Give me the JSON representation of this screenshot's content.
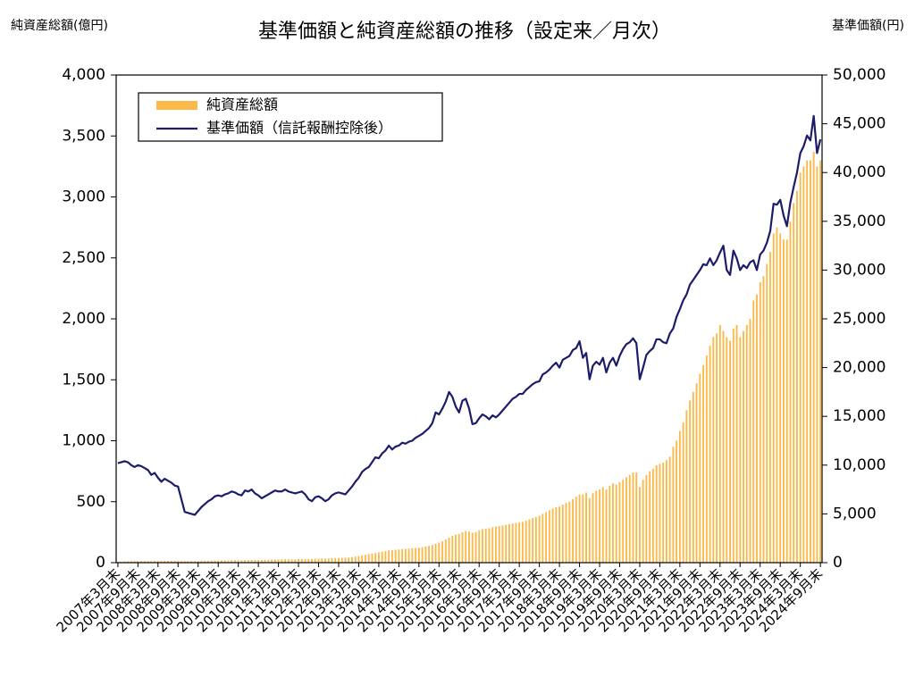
{
  "chart_data": {
    "type": "combo",
    "title": "基準価額と純資産総額の推移（設定来／月次）",
    "y_axis_label": "純資産総額(億円)",
    "y2_axis_label": "基準価額(円)",
    "categories": [
      "2007年3月末",
      null,
      null,
      null,
      null,
      null,
      "2007年9月末",
      null,
      null,
      null,
      null,
      null,
      "2008年3月末",
      null,
      null,
      null,
      null,
      null,
      "2008年9月末",
      null,
      null,
      null,
      null,
      null,
      "2009年3月末",
      null,
      null,
      null,
      null,
      null,
      "2009年9月末",
      null,
      null,
      null,
      null,
      null,
      "2010年3月末",
      null,
      null,
      null,
      null,
      null,
      "2010年9月末",
      null,
      null,
      null,
      null,
      null,
      "2011年3月末",
      null,
      null,
      null,
      null,
      null,
      "2011年9月末",
      null,
      null,
      null,
      null,
      null,
      "2012年3月末",
      null,
      null,
      null,
      null,
      null,
      "2012年9月末",
      null,
      null,
      null,
      null,
      null,
      "2013年3月末",
      null,
      null,
      null,
      null,
      null,
      "2013年9月末",
      null,
      null,
      null,
      null,
      null,
      "2014年3月末",
      null,
      null,
      null,
      null,
      null,
      "2014年9月末",
      null,
      null,
      null,
      null,
      null,
      "2015年3月末",
      null,
      null,
      null,
      null,
      null,
      "2015年9月末",
      null,
      null,
      null,
      null,
      null,
      "2016年3月末",
      null,
      null,
      null,
      null,
      null,
      "2016年9月末",
      null,
      null,
      null,
      null,
      null,
      "2017年3月末",
      null,
      null,
      null,
      null,
      null,
      "2017年9月末",
      null,
      null,
      null,
      null,
      null,
      "2018年3月末",
      null,
      null,
      null,
      null,
      null,
      "2018年9月末",
      null,
      null,
      null,
      null,
      null,
      "2019年3月末",
      null,
      null,
      null,
      null,
      null,
      "2019年9月末",
      null,
      null,
      null,
      null,
      null,
      "2020年3月末",
      null,
      null,
      null,
      null,
      null,
      "2020年9月末",
      null,
      null,
      null,
      null,
      null,
      "2021年3月末",
      null,
      null,
      null,
      null,
      null,
      "2021年9月末",
      null,
      null,
      null,
      null,
      null,
      "2022年3月末",
      null,
      null,
      null,
      null,
      null,
      "2022年9月末",
      null,
      null,
      null,
      null,
      null,
      "2023年3月末",
      null,
      null,
      null,
      null,
      null,
      "2023年9月末",
      null,
      null,
      null,
      null,
      null,
      "2024年3月末",
      null,
      null,
      null,
      null,
      null,
      "2024年9月末"
    ],
    "series": [
      {
        "name": "純資産総額",
        "type": "bar",
        "color": "#fbb94a",
        "values": [
          5,
          8,
          10,
          11,
          12,
          12,
          13,
          13,
          13,
          13,
          13,
          14,
          14,
          14,
          15,
          15,
          15,
          15,
          14,
          13,
          12,
          12,
          12,
          12,
          13,
          14,
          15,
          16,
          17,
          18,
          18,
          18,
          19,
          19,
          20,
          20,
          20,
          20,
          21,
          21,
          22,
          22,
          22,
          22,
          23,
          24,
          25,
          26,
          26,
          27,
          28,
          28,
          28,
          28,
          29,
          30,
          30,
          30,
          31,
          32,
          33,
          34,
          34,
          35,
          36,
          37,
          38,
          39,
          40,
          42,
          46,
          50,
          55,
          60,
          65,
          70,
          75,
          80,
          85,
          90,
          95,
          100,
          103,
          105,
          108,
          110,
          112,
          115,
          118,
          120,
          123,
          127,
          132,
          138,
          145,
          155,
          165,
          175,
          190,
          205,
          220,
          230,
          235,
          250,
          260,
          255,
          245,
          250,
          265,
          275,
          280,
          282,
          290,
          295,
          300,
          305,
          310,
          315,
          320,
          325,
          330,
          335,
          345,
          355,
          365,
          375,
          385,
          400,
          415,
          430,
          445,
          455,
          460,
          475,
          490,
          500,
          520,
          540,
          560,
          560,
          575,
          530,
          570,
          590,
          600,
          620,
          600,
          630,
          650,
          640,
          660,
          680,
          700,
          720,
          740,
          740,
          620,
          680,
          720,
          750,
          770,
          800,
          810,
          820,
          840,
          870,
          950,
          1000,
          1080,
          1150,
          1250,
          1330,
          1400,
          1470,
          1550,
          1620,
          1700,
          1780,
          1850,
          1880,
          1950,
          1900,
          1850,
          1820,
          1920,
          1950,
          1850,
          1900,
          1950,
          2000,
          2150,
          2200,
          2300,
          2350,
          2450,
          2550,
          2700,
          2750,
          2700,
          2650,
          2650,
          2800,
          2950,
          3050,
          3200,
          3250,
          3300,
          3300,
          3370,
          3250,
          3300
        ]
      },
      {
        "name": "基準価額（信託報酬控除後）",
        "type": "line",
        "axis": "y2",
        "color": "#1c1c6b",
        "values": [
          10200,
          10300,
          10400,
          10300,
          10000,
          9800,
          10000,
          9900,
          9700,
          9500,
          9000,
          9200,
          8700,
          8300,
          8600,
          8400,
          8200,
          7900,
          7800,
          6500,
          5200,
          5100,
          5000,
          4900,
          5300,
          5700,
          6000,
          6300,
          6500,
          6800,
          6900,
          6800,
          7000,
          7100,
          7300,
          7200,
          7000,
          6900,
          7400,
          7300,
          7500,
          7100,
          6900,
          6600,
          6800,
          7000,
          7200,
          7400,
          7300,
          7300,
          7500,
          7300,
          7200,
          7100,
          7200,
          7300,
          7000,
          6500,
          6300,
          6700,
          6800,
          6600,
          6300,
          6500,
          6900,
          7100,
          7200,
          7100,
          7000,
          7400,
          7800,
          8300,
          8700,
          9300,
          9600,
          9800,
          10300,
          10800,
          10700,
          11200,
          11500,
          12000,
          11600,
          11900,
          12000,
          12300,
          12200,
          12400,
          12500,
          12800,
          13000,
          13200,
          13500,
          13800,
          14300,
          15400,
          15200,
          15800,
          16500,
          17500,
          17000,
          16000,
          15400,
          16600,
          16800,
          15800,
          14200,
          14300,
          14800,
          15200,
          15000,
          14700,
          15100,
          14900,
          15200,
          15600,
          16000,
          16400,
          16800,
          17000,
          17300,
          17300,
          17700,
          18000,
          18300,
          18500,
          18600,
          19300,
          19500,
          19800,
          20200,
          20500,
          20000,
          20800,
          21000,
          21200,
          21800,
          22000,
          22700,
          21000,
          21500,
          18800,
          20200,
          20600,
          20300,
          21000,
          19500,
          20500,
          21000,
          20200,
          21200,
          21900,
          22400,
          22600,
          23000,
          22500,
          18800,
          20000,
          21300,
          21700,
          22000,
          22900,
          22900,
          22600,
          22500,
          23500,
          24000,
          25200,
          26000,
          26900,
          27500,
          28500,
          29000,
          29500,
          30000,
          30600,
          30500,
          31200,
          30500,
          31000,
          31800,
          32500,
          30000,
          29500,
          32000,
          31200,
          30000,
          30500,
          30200,
          30800,
          31000,
          30000,
          31600,
          32000,
          32800,
          34000,
          36800,
          36700,
          37200,
          35600,
          34500,
          36900,
          38500,
          40000,
          42000,
          42700,
          43800,
          43300,
          45800,
          42000,
          43400
        ]
      }
    ],
    "ylim": [
      0,
      4000
    ],
    "yticks": [
      0,
      500,
      {
        "value": 1000,
        "label": "1,000"
      },
      {
        "value": 1500,
        "label": "1,500"
      },
      {
        "value": 2000,
        "label": "2,000"
      },
      {
        "value": 2500,
        "label": "2,500"
      },
      {
        "value": 3000,
        "label": "3,000"
      },
      {
        "value": 3500,
        "label": "3,500"
      },
      {
        "value": 4000,
        "label": "4,000"
      }
    ],
    "y2lim": [
      0,
      50000
    ],
    "y2ticks": [
      0,
      {
        "value": 5000,
        "label": "5,000"
      },
      {
        "value": 10000,
        "label": "10,000"
      },
      {
        "value": 15000,
        "label": "15,000"
      },
      {
        "value": 20000,
        "label": "20,000"
      },
      {
        "value": 25000,
        "label": "25,000"
      },
      {
        "value": 30000,
        "label": "30,000"
      },
      {
        "value": 35000,
        "label": "35,000"
      },
      {
        "value": 40000,
        "label": "40,000"
      },
      {
        "value": 45000,
        "label": "45,000"
      },
      {
        "value": 50000,
        "label": "50,000"
      }
    ],
    "grid": false,
    "legend": "upper left"
  }
}
